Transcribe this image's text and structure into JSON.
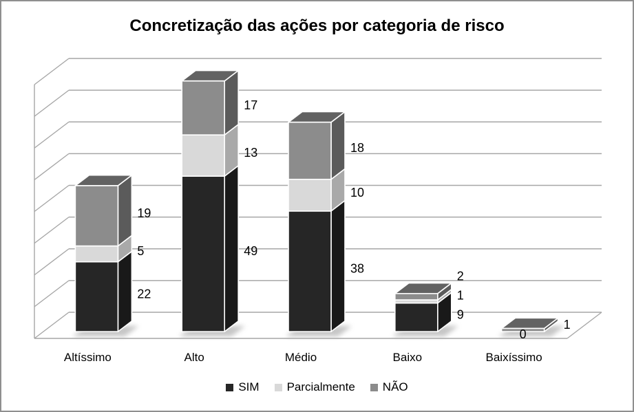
{
  "chart_data": {
    "type": "bar",
    "variant": "3d-stacked-column",
    "title": "Concretização das ações por categoria de risco",
    "categories": [
      "Altíssimo",
      "Alto",
      "Médio",
      "Baixo",
      "Baixíssimo"
    ],
    "series": [
      {
        "name": "SIM",
        "color": "#262626",
        "values": [
          22,
          49,
          38,
          9,
          0
        ]
      },
      {
        "name": "Parcialmente",
        "color": "#d9d9d9",
        "values": [
          5,
          13,
          10,
          1,
          0
        ]
      },
      {
        "name": "NÃO",
        "color": "#8c8c8c",
        "values": [
          19,
          17,
          18,
          2,
          1
        ]
      }
    ],
    "value_axis": {
      "min": 0,
      "max": 80,
      "step": 10,
      "tick_labels_visible": false
    },
    "grid": true,
    "grid_color": "#a6a6a6",
    "data_labels_visible": true,
    "legend_position": "bottom",
    "text_color": "#000000",
    "background": "#ffffff"
  }
}
